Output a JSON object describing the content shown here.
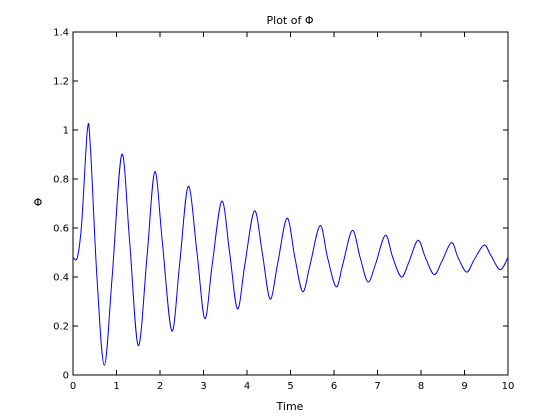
{
  "chart_data": {
    "type": "line",
    "title": "Plot of Φ",
    "xlabel": "Time",
    "ylabel": "Φ",
    "xlim": [
      0,
      10
    ],
    "ylim": [
      0,
      1.4
    ],
    "xticks": [
      0,
      1,
      2,
      3,
      4,
      5,
      6,
      7,
      8,
      9,
      10
    ],
    "yticks": [
      0,
      0.2,
      0.4,
      0.6,
      0.8,
      1,
      1.2,
      1.4
    ],
    "xtick_labels": [
      "0",
      "1",
      "2",
      "3",
      "4",
      "5",
      "6",
      "7",
      "8",
      "9",
      "10"
    ],
    "ytick_labels": [
      "0",
      "0.2",
      "0.4",
      "0.6",
      "0.8",
      "1",
      "1.2",
      "1.4"
    ],
    "grid": false,
    "series": [
      {
        "color": "#0000ff",
        "points": [
          [
            0.0,
            0.48
          ],
          [
            0.1,
            0.48
          ],
          [
            0.2,
            0.62
          ],
          [
            0.33,
            1.0
          ],
          [
            0.4,
            0.93
          ],
          [
            0.55,
            0.4
          ],
          [
            0.72,
            0.04
          ],
          [
            0.9,
            0.4
          ],
          [
            1.12,
            0.9
          ],
          [
            1.3,
            0.55
          ],
          [
            1.5,
            0.12
          ],
          [
            1.7,
            0.48
          ],
          [
            1.88,
            0.83
          ],
          [
            2.05,
            0.55
          ],
          [
            2.27,
            0.18
          ],
          [
            2.45,
            0.45
          ],
          [
            2.65,
            0.77
          ],
          [
            2.85,
            0.5
          ],
          [
            3.03,
            0.23
          ],
          [
            3.2,
            0.45
          ],
          [
            3.42,
            0.71
          ],
          [
            3.6,
            0.5
          ],
          [
            3.78,
            0.27
          ],
          [
            3.95,
            0.45
          ],
          [
            4.17,
            0.67
          ],
          [
            4.35,
            0.5
          ],
          [
            4.53,
            0.31
          ],
          [
            4.7,
            0.45
          ],
          [
            4.92,
            0.64
          ],
          [
            5.1,
            0.48
          ],
          [
            5.28,
            0.34
          ],
          [
            5.45,
            0.45
          ],
          [
            5.68,
            0.61
          ],
          [
            5.85,
            0.48
          ],
          [
            6.05,
            0.36
          ],
          [
            6.2,
            0.45
          ],
          [
            6.42,
            0.59
          ],
          [
            6.6,
            0.48
          ],
          [
            6.78,
            0.38
          ],
          [
            6.95,
            0.45
          ],
          [
            7.18,
            0.57
          ],
          [
            7.35,
            0.48
          ],
          [
            7.55,
            0.4
          ],
          [
            7.72,
            0.46
          ],
          [
            7.93,
            0.55
          ],
          [
            8.1,
            0.48
          ],
          [
            8.3,
            0.41
          ],
          [
            8.47,
            0.46
          ],
          [
            8.7,
            0.54
          ],
          [
            8.85,
            0.48
          ],
          [
            9.05,
            0.42
          ],
          [
            9.22,
            0.47
          ],
          [
            9.45,
            0.53
          ],
          [
            9.6,
            0.49
          ],
          [
            9.82,
            0.43
          ],
          [
            10.0,
            0.48
          ]
        ]
      }
    ]
  }
}
